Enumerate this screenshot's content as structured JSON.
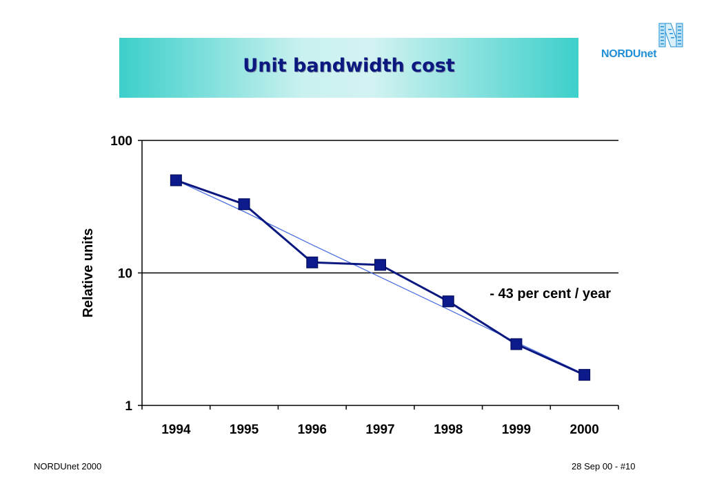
{
  "slide": {
    "title": "Unit bandwidth cost",
    "logo_text": "NORDUnet",
    "footer_left": "NORDUnet 2000",
    "footer_right": "28 Sep 00 - #10"
  },
  "colors": {
    "banner_edge": "#3ccfca",
    "banner_center": "#d2f3f1",
    "title_text": "#0a1880",
    "series_line": "#0a1880",
    "marker_fill": "#0d1a8c",
    "trend_line": "#4a6ee0",
    "logo_blue": "#1e8fd6"
  },
  "chart_data": {
    "type": "line",
    "yscale": "log",
    "ylim": [
      1,
      100
    ],
    "ylabel": "Relative units",
    "xlabel": "",
    "categories": [
      "1994",
      "1995",
      "1996",
      "1997",
      "1998",
      "1999",
      "2000"
    ],
    "y_ticks": [
      "1",
      "10",
      "100"
    ],
    "gridlines": "major horizontal at 10 and 100",
    "series": [
      {
        "values": [
          50,
          33,
          12,
          11.5,
          6.1,
          2.9,
          1.7
        ],
        "marker": "square"
      }
    ],
    "trendline": {
      "values": [
        50,
        29,
        16.3,
        9.3,
        5.3,
        3.0,
        1.72
      ]
    },
    "annotation": "- 43 per cent / year"
  }
}
